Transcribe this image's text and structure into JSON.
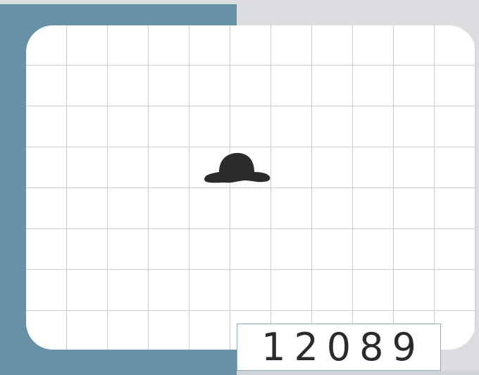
{
  "game": {
    "score": "12089",
    "sprite_icon": "bowler-hat-icon"
  },
  "colors": {
    "backdrop": "#6891a7",
    "background": "#dcdde0",
    "board": "#ffffff",
    "grid_line": "#c9ccd0",
    "sprite": "#2b2b2b",
    "score_text": "#2b2b2b"
  }
}
